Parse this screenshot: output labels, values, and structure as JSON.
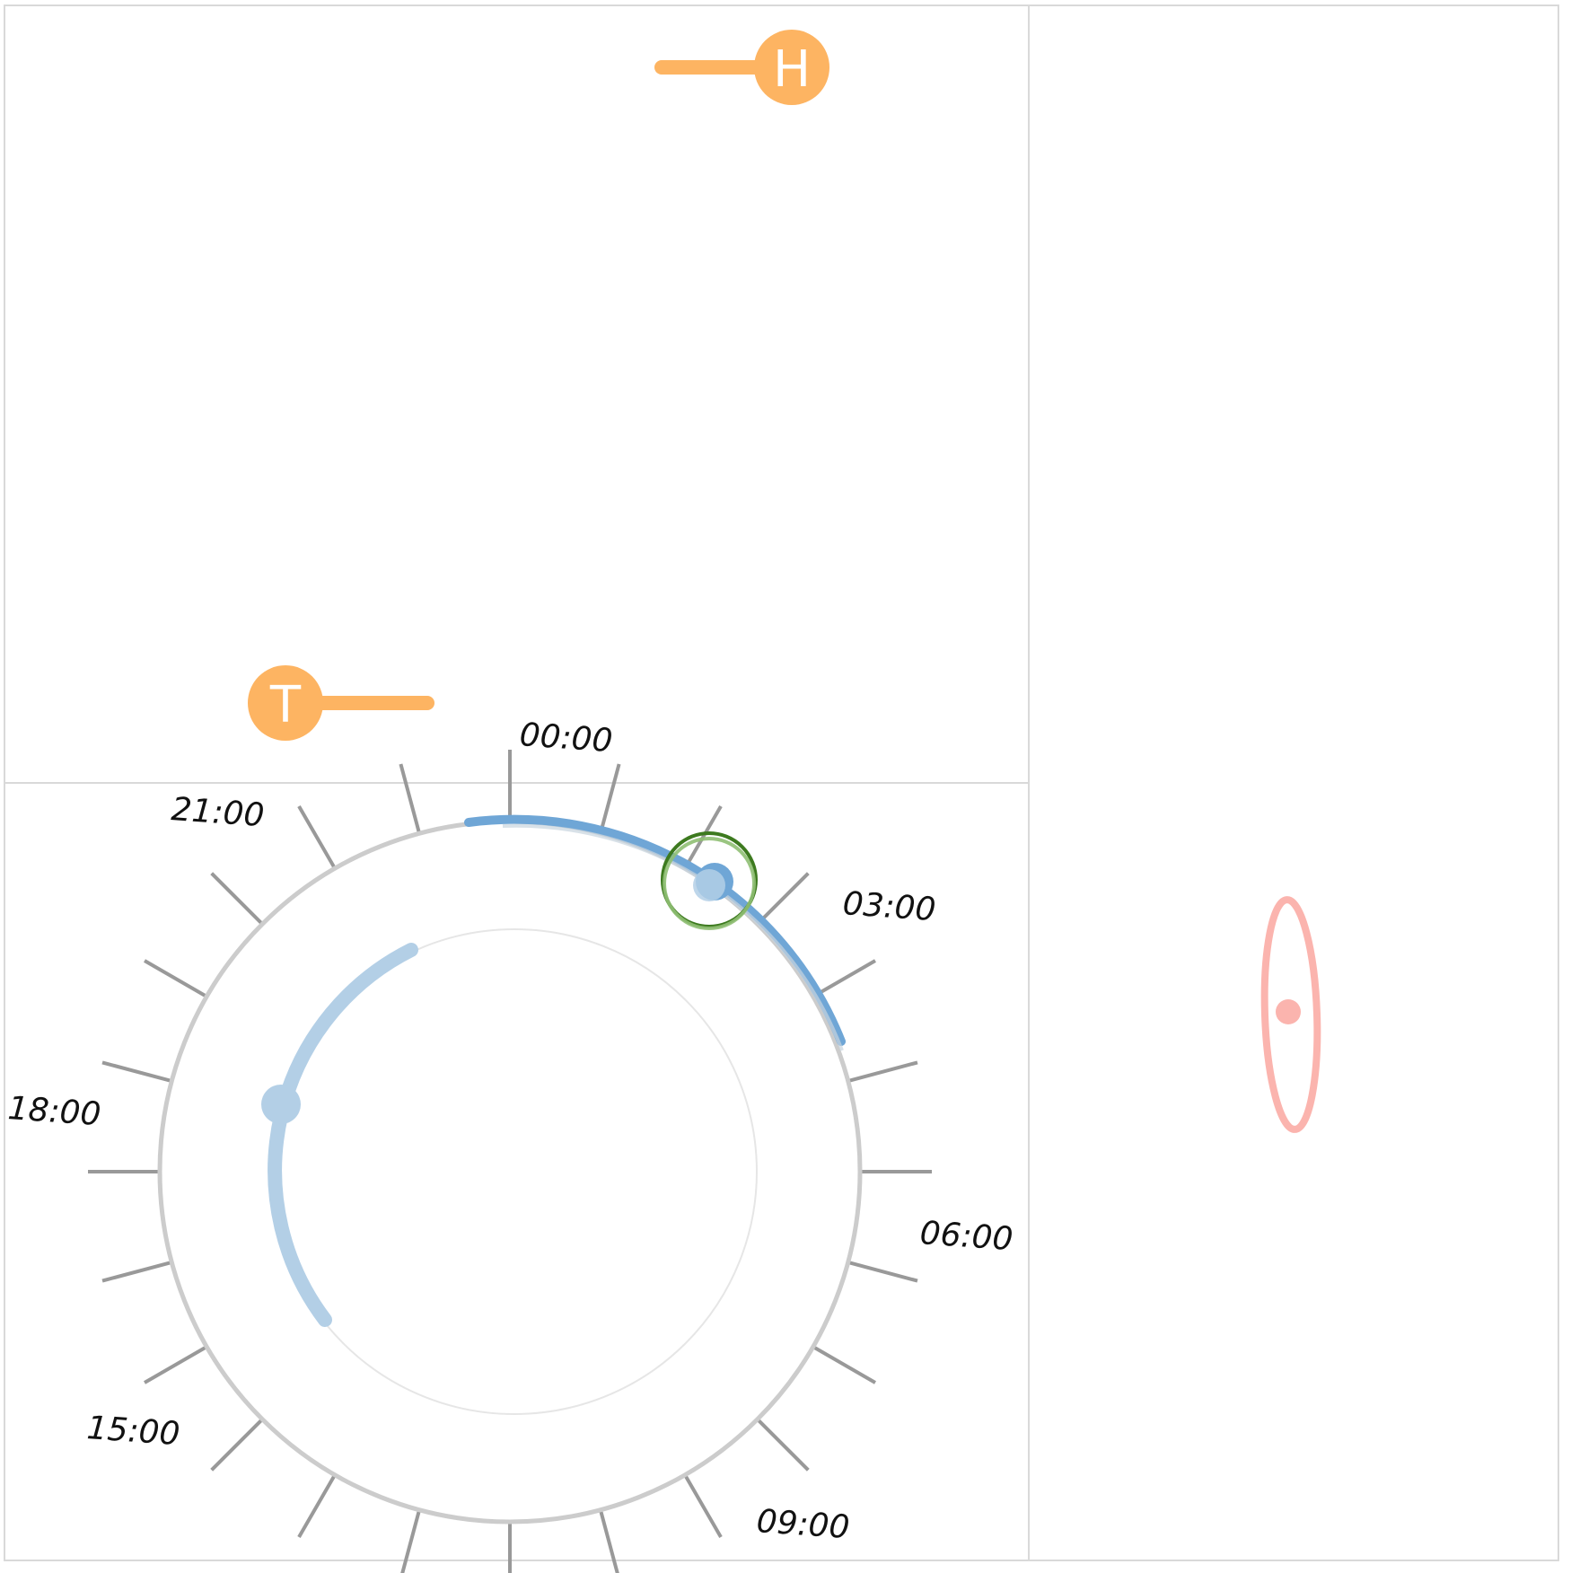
{
  "markers": {
    "head": {
      "letter": "H",
      "color": "#fdb462"
    },
    "tail": {
      "letter": "T",
      "color": "#fdb462"
    }
  },
  "clock": {
    "hour_labels": [
      "00:00",
      "03:00",
      "06:00",
      "09:00",
      "15:00",
      "18:00",
      "21:00"
    ],
    "tick_color": "#999999",
    "ring_color": "#cccccc",
    "inner_ring_color": "#e6e6e6"
  },
  "arcs": {
    "outer_color": "#6fa6d6",
    "inner_color": "#b3cfe6"
  },
  "selection_ring": {
    "outer_color": "#3d7a1f",
    "inner_color": "#8fbf73"
  },
  "ellipse": {
    "color": "#fbb4ae"
  },
  "panel_border_color": "#d9d9d9"
}
